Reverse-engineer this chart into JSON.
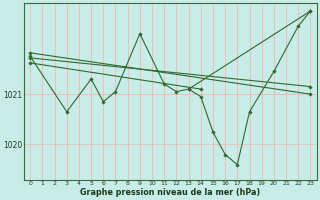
{
  "bg_color": "#c8ece8",
  "grid_color": "#ffaaaa",
  "line_color": "#2d6a2d",
  "marker_color": "#2d6a2d",
  "title": "Graphe pression niveau de la mer (hPa)",
  "ylabel_ticks": [
    1020,
    1021
  ],
  "xlim": [
    -0.5,
    23.5
  ],
  "ylim": [
    1019.3,
    1022.8
  ],
  "xticks": [
    0,
    1,
    2,
    3,
    4,
    5,
    6,
    7,
    8,
    9,
    10,
    11,
    12,
    13,
    14,
    15,
    16,
    17,
    18,
    19,
    20,
    21,
    22,
    23
  ],
  "zz_x": [
    0,
    3,
    5,
    6,
    7,
    9,
    11,
    12,
    13,
    14,
    15,
    16,
    17,
    18,
    20,
    22,
    23
  ],
  "zz_y": [
    1021.75,
    1020.65,
    1021.3,
    1020.85,
    1021.05,
    1022.2,
    1021.2,
    1021.05,
    1021.1,
    1020.95,
    1020.25,
    1019.8,
    1019.6,
    1020.65,
    1021.45,
    1022.35,
    1022.65
  ],
  "line1_x": [
    0,
    23
  ],
  "line1_y": [
    1021.82,
    1021.0
  ],
  "line2_x": [
    0,
    23
  ],
  "line2_y": [
    1021.72,
    1021.15
  ],
  "line3_x": [
    0,
    14
  ],
  "line3_y": [
    1021.62,
    1021.1
  ],
  "line4_x": [
    13,
    23
  ],
  "line4_y": [
    1021.1,
    1022.65
  ]
}
